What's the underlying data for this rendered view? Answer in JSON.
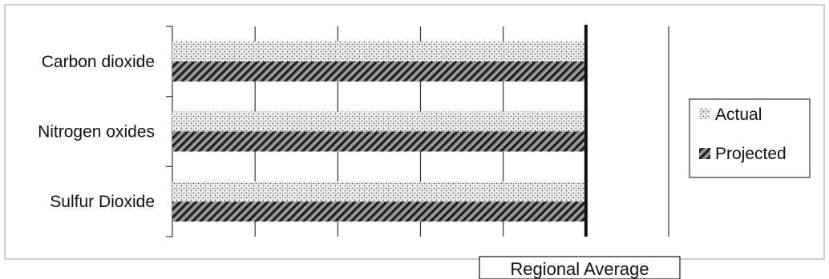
{
  "chart_data": {
    "type": "bar",
    "orientation": "horizontal",
    "categories": [
      "Carbon dioxide",
      "Nitrogen oxides",
      "Sulfur Dioxide"
    ],
    "series": [
      {
        "name": "Actual",
        "values": [
          5,
          5,
          5
        ],
        "pattern": "dotted"
      },
      {
        "name": "Projected",
        "values": [
          5,
          5,
          5
        ],
        "pattern": "diagonal-hatch"
      }
    ],
    "xlim": [
      0,
      6
    ],
    "grid": true,
    "legend": {
      "placement": "right",
      "items": [
        "Actual",
        "Projected"
      ]
    },
    "reference_line": {
      "label": "Regional Average",
      "value": 5
    },
    "colors": {
      "bar_dots": "#555555",
      "bar_hatch": "#222222",
      "axis": "#333333",
      "reference": "#111111"
    }
  }
}
